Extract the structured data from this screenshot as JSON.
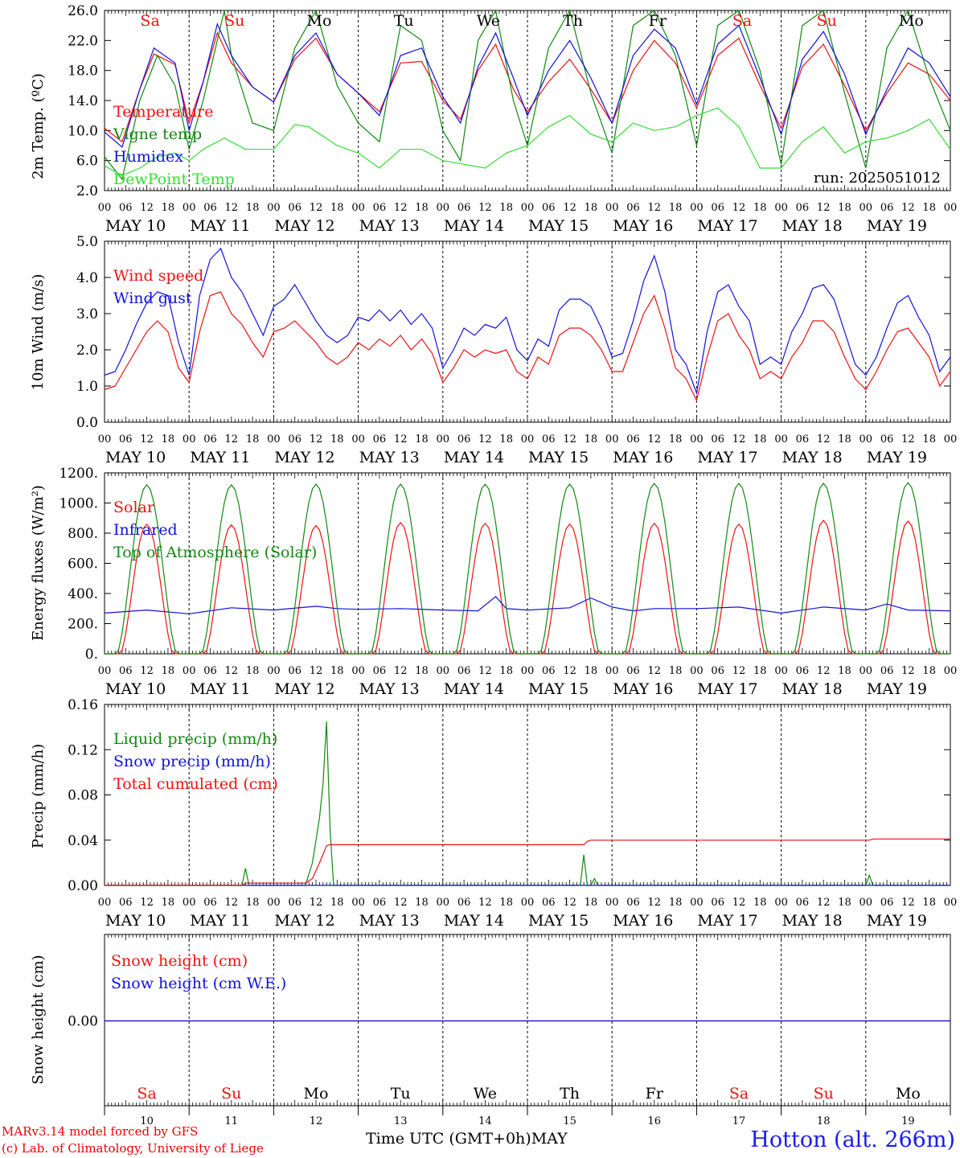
{
  "footer": {
    "model": "MARv3.14 model forced by GFS",
    "lab": "(c) Lab. of Climatology, University of Liege",
    "station": "Hotton (alt. 266m)",
    "time_axis_label": "Time UTC (GMT+0h)",
    "month": "MAY"
  },
  "days": {
    "dates": [
      "MAY 10",
      "MAY 11",
      "MAY 12",
      "MAY 13",
      "MAY 14",
      "MAY 15",
      "MAY 16",
      "MAY 17",
      "MAY 18",
      "MAY 19"
    ],
    "weekdays": [
      "Sa",
      "Su",
      "Mo",
      "Tu",
      "We",
      "Th",
      "Fr",
      "Sa",
      "Su",
      "Mo"
    ],
    "weekend": [
      true,
      true,
      false,
      false,
      false,
      false,
      false,
      true,
      true,
      false
    ],
    "numbers": [
      "10",
      "11",
      "12",
      "13",
      "14",
      "15",
      "16",
      "17",
      "18",
      "19"
    ],
    "hour_ticks": [
      "00",
      "06",
      "12",
      "18"
    ],
    "end_tick": "00"
  },
  "colors": {
    "red": "#ee1111",
    "darkgreen": "#118811",
    "blue": "#1111dd",
    "lightgreen": "#33dd33",
    "weekend": "#ee1111"
  },
  "chart_data": [
    {
      "type": "line",
      "ylabel": "2m Temp. (ºC)",
      "ylim": [
        2.0,
        26.0
      ],
      "yticks": [
        "2.0",
        "6.0",
        "10.0",
        "14.0",
        "18.0",
        "22.0",
        "26.0"
      ],
      "annotation": "run: 2025051012",
      "x_unit": "hours since MAY 10 00 UTC",
      "series": [
        {
          "name": "Temperature",
          "color": "red",
          "x": [
            0,
            5,
            10,
            14,
            20,
            24,
            28,
            32,
            36,
            42,
            48,
            54,
            60,
            66,
            72,
            78,
            84,
            90,
            96,
            101,
            106,
            111,
            116,
            120,
            126,
            132,
            138,
            144,
            150,
            156,
            162,
            168,
            174,
            180,
            186,
            192,
            198,
            204,
            210,
            216,
            222,
            228,
            234,
            240
          ],
          "y": [
            10.3,
            8.5,
            15.5,
            20.2,
            18.8,
            11.0,
            16.5,
            23.0,
            19.0,
            15.8,
            13.8,
            19.5,
            22.3,
            17.5,
            15.0,
            12.5,
            19.0,
            19.2,
            14.0,
            11.5,
            18.0,
            21.5,
            15.5,
            12.5,
            16.5,
            19.5,
            15.5,
            11.0,
            18.0,
            22.0,
            19.0,
            13.0,
            20.0,
            22.3,
            16.0,
            10.3,
            18.5,
            21.5,
            16.0,
            10.0,
            15.0,
            19.0,
            17.5,
            14.0
          ]
        },
        {
          "name": "Vigne temp",
          "color": "darkgreen",
          "x": [
            0,
            5,
            10,
            15,
            20,
            24,
            28,
            34,
            36,
            42,
            48,
            54,
            60,
            66,
            72,
            78,
            84,
            90,
            96,
            101,
            106,
            111,
            116,
            120,
            126,
            132,
            138,
            144,
            150,
            156,
            162,
            168,
            174,
            180,
            186,
            192,
            198,
            204,
            210,
            216,
            222,
            228,
            234,
            240
          ],
          "y": [
            6.5,
            3.5,
            14.0,
            20.0,
            16.0,
            7.5,
            14.0,
            26.0,
            20.0,
            11.0,
            10.0,
            21.0,
            26.0,
            16.0,
            11.0,
            8.5,
            24.0,
            22.0,
            10.0,
            6.0,
            22.0,
            26.0,
            14.0,
            8.0,
            21.0,
            26.0,
            15.0,
            7.0,
            24.0,
            26.0,
            20.0,
            8.0,
            24.0,
            26.0,
            18.0,
            5.5,
            24.0,
            26.0,
            15.0,
            5.0,
            21.0,
            26.0,
            17.0,
            10.0
          ]
        },
        {
          "name": "Humidex",
          "color": "blue",
          "x": [
            0,
            5,
            10,
            14,
            20,
            24,
            28,
            32,
            36,
            42,
            48,
            54,
            60,
            66,
            72,
            78,
            84,
            90,
            96,
            101,
            106,
            111,
            116,
            120,
            126,
            132,
            138,
            144,
            150,
            156,
            162,
            168,
            174,
            180,
            186,
            192,
            198,
            204,
            210,
            216,
            222,
            228,
            234,
            240
          ],
          "y": [
            9.8,
            7.8,
            15.5,
            21.0,
            19.0,
            10.0,
            16.5,
            24.2,
            20.0,
            15.8,
            13.8,
            20.0,
            23.0,
            17.5,
            15.0,
            12.0,
            20.0,
            21.0,
            14.5,
            11.0,
            18.5,
            23.0,
            17.0,
            12.0,
            18.0,
            22.0,
            17.0,
            11.0,
            20.0,
            23.5,
            21.0,
            13.5,
            21.5,
            24.0,
            17.0,
            9.5,
            19.5,
            23.2,
            17.5,
            9.5,
            15.5,
            21.0,
            19.0,
            14.5
          ]
        },
        {
          "name": "DewPoint Temp",
          "color": "lightgreen",
          "x": [
            0,
            5,
            10,
            15,
            20,
            24,
            28,
            34,
            40,
            48,
            54,
            58,
            66,
            72,
            78,
            84,
            90,
            96,
            102,
            108,
            114,
            120,
            126,
            132,
            138,
            144,
            150,
            156,
            162,
            168,
            174,
            180,
            186,
            192,
            198,
            204,
            210,
            216,
            222,
            228,
            234,
            240
          ],
          "y": [
            5.3,
            4.0,
            5.0,
            6.5,
            7.0,
            6.0,
            7.5,
            9.0,
            7.5,
            7.5,
            10.8,
            10.5,
            8.0,
            7.0,
            5.0,
            7.5,
            7.5,
            6.0,
            5.5,
            5.0,
            7.0,
            8.0,
            10.5,
            12.0,
            9.5,
            8.5,
            11.0,
            10.0,
            10.5,
            12.0,
            13.0,
            10.5,
            5.0,
            5.0,
            8.5,
            10.5,
            7.0,
            8.5,
            9.0,
            10.0,
            11.5,
            7.5
          ]
        }
      ]
    },
    {
      "type": "line",
      "ylabel": "10m Wind (m/s)",
      "ylim": [
        0.0,
        5.0
      ],
      "yticks": [
        "0.0",
        "1.0",
        "2.0",
        "3.0",
        "4.0",
        "5.0"
      ],
      "x_unit": "hours since MAY 10 00 UTC",
      "series": [
        {
          "name": "Wind speed",
          "color": "red",
          "x": [
            0,
            3,
            6,
            9,
            12,
            15,
            18,
            21,
            24,
            27,
            30,
            33,
            36,
            39,
            42,
            45,
            48,
            51,
            54,
            57,
            60,
            63,
            66,
            69,
            72,
            75,
            78,
            81,
            84,
            87,
            90,
            93,
            96,
            99,
            102,
            105,
            108,
            111,
            114,
            117,
            120,
            123,
            126,
            129,
            132,
            135,
            138,
            141,
            144,
            147,
            150,
            153,
            156,
            159,
            162,
            165,
            168,
            171,
            174,
            177,
            180,
            183,
            186,
            189,
            192,
            195,
            198,
            201,
            204,
            207,
            210,
            213,
            216,
            219,
            222,
            225,
            228,
            231,
            234,
            237,
            240
          ],
          "y": [
            0.9,
            1.0,
            1.5,
            2.0,
            2.5,
            2.8,
            2.5,
            1.5,
            1.1,
            2.5,
            3.5,
            3.6,
            3.0,
            2.7,
            2.2,
            1.8,
            2.5,
            2.6,
            2.8,
            2.5,
            2.2,
            1.8,
            1.6,
            1.8,
            2.2,
            2.0,
            2.3,
            2.1,
            2.4,
            2.0,
            2.3,
            1.9,
            1.1,
            1.5,
            2.0,
            1.8,
            2.0,
            1.9,
            2.0,
            1.4,
            1.2,
            1.8,
            1.6,
            2.4,
            2.6,
            2.6,
            2.4,
            2.0,
            1.4,
            1.4,
            2.2,
            3.0,
            3.5,
            2.6,
            1.5,
            1.2,
            0.6,
            1.8,
            2.8,
            3.0,
            2.4,
            2.0,
            1.2,
            1.4,
            1.2,
            1.8,
            2.2,
            2.8,
            2.8,
            2.5,
            1.8,
            1.2,
            0.9,
            1.4,
            2.0,
            2.5,
            2.6,
            2.2,
            1.8,
            1.0,
            1.4
          ]
        },
        {
          "name": "Wind gust",
          "color": "blue",
          "x": [
            0,
            3,
            6,
            9,
            12,
            15,
            18,
            21,
            24,
            27,
            30,
            33,
            36,
            39,
            42,
            45,
            48,
            51,
            54,
            57,
            60,
            63,
            66,
            69,
            72,
            75,
            78,
            81,
            84,
            87,
            90,
            93,
            96,
            99,
            102,
            105,
            108,
            111,
            114,
            117,
            120,
            123,
            126,
            129,
            132,
            135,
            138,
            141,
            144,
            147,
            150,
            153,
            156,
            159,
            162,
            165,
            168,
            171,
            174,
            177,
            180,
            183,
            186,
            189,
            192,
            195,
            198,
            201,
            204,
            207,
            210,
            213,
            216,
            219,
            222,
            225,
            228,
            231,
            234,
            237,
            240
          ],
          "y": [
            1.3,
            1.4,
            2.0,
            2.7,
            3.3,
            3.6,
            3.5,
            2.2,
            1.3,
            3.5,
            4.5,
            4.8,
            4.0,
            3.6,
            3.0,
            2.4,
            3.2,
            3.4,
            3.8,
            3.3,
            2.8,
            2.4,
            2.2,
            2.4,
            2.9,
            2.8,
            3.1,
            2.8,
            3.1,
            2.7,
            3.0,
            2.6,
            1.5,
            2.0,
            2.6,
            2.4,
            2.7,
            2.6,
            2.9,
            2.0,
            1.7,
            2.3,
            2.1,
            3.1,
            3.4,
            3.4,
            3.2,
            2.6,
            1.8,
            1.9,
            2.8,
            3.9,
            4.6,
            3.6,
            2.0,
            1.6,
            0.8,
            2.5,
            3.6,
            3.8,
            3.2,
            2.8,
            1.6,
            1.8,
            1.6,
            2.5,
            3.0,
            3.7,
            3.8,
            3.4,
            2.5,
            1.6,
            1.3,
            1.8,
            2.6,
            3.3,
            3.5,
            2.9,
            2.4,
            1.4,
            1.8
          ]
        }
      ]
    },
    {
      "type": "line",
      "ylabel": "Energy fluxes (W/m²)",
      "ylim": [
        0,
        1200
      ],
      "yticks": [
        "0.",
        "200.",
        "400.",
        "600.",
        "800.",
        "1000.",
        "1200."
      ],
      "x_unit": "hours since MAY 10 00 UTC",
      "series": [
        {
          "name": "Solar",
          "color": "red",
          "daily_peaks": [
            860,
            855,
            850,
            870,
            865,
            860,
            865,
            860,
            885,
            880
          ]
        },
        {
          "name": "Infrared",
          "color": "blue",
          "x": [
            0,
            12,
            24,
            36,
            48,
            60,
            66,
            72,
            84,
            96,
            106,
            111,
            114,
            120,
            132,
            138,
            144,
            150,
            156,
            168,
            180,
            192,
            204,
            216,
            222,
            228,
            240
          ],
          "y": [
            270,
            290,
            265,
            305,
            290,
            315,
            300,
            295,
            300,
            290,
            285,
            380,
            300,
            290,
            305,
            370,
            310,
            285,
            300,
            300,
            310,
            270,
            310,
            290,
            330,
            290,
            285
          ]
        },
        {
          "name": "Top of Atmosphere (Solar)",
          "color": "darkgreen",
          "daily_peaks": [
            1120,
            1120,
            1125,
            1125,
            1125,
            1125,
            1130,
            1130,
            1130,
            1135
          ]
        }
      ]
    },
    {
      "type": "line",
      "ylabel": "Precip (mm/h)",
      "ylim": [
        0.0,
        0.16
      ],
      "yticks": [
        "0.00",
        "0.04",
        "0.08",
        "0.12",
        "0.16"
      ],
      "x_unit": "hours since MAY 10 00 UTC",
      "series": [
        {
          "name": "Liquid precip (mm/h)",
          "color": "darkgreen",
          "x": [
            0,
            39,
            40,
            41,
            57,
            58,
            59,
            60,
            61,
            62,
            63,
            64,
            65,
            66,
            67,
            68,
            135,
            136,
            137,
            138,
            139,
            140,
            141,
            216,
            217,
            218,
            219,
            240
          ],
          "y": [
            0,
            0,
            0.015,
            0,
            0,
            0.01,
            0.02,
            0.04,
            0.06,
            0.09,
            0.145,
            0.05,
            0,
            0,
            0,
            0,
            0,
            0.027,
            0,
            0,
            0.006,
            0,
            0,
            0,
            0.009,
            0,
            0,
            0
          ]
        },
        {
          "name": "Snow precip (mm/h)",
          "color": "blue",
          "x": [
            0,
            240
          ],
          "y": [
            0,
            0
          ]
        },
        {
          "name": "Total cumulated (cm)",
          "color": "red",
          "x": [
            0,
            39,
            40,
            57,
            59,
            61,
            63,
            64,
            136,
            137,
            138,
            217,
            218,
            240
          ],
          "y": [
            0,
            0,
            0.002,
            0.002,
            0.006,
            0.02,
            0.035,
            0.036,
            0.036,
            0.039,
            0.04,
            0.04,
            0.041,
            0.041
          ]
        }
      ]
    },
    {
      "type": "line",
      "ylabel": "Snow height (cm)",
      "yticks": [
        "0.00"
      ],
      "x_unit": "hours since MAY 10 00 UTC",
      "series": [
        {
          "name": "Snow height (cm)",
          "color": "red",
          "x": [
            0,
            240
          ],
          "y": [
            0,
            0
          ]
        },
        {
          "name": "Snow height (cm W.E.)",
          "color": "blue",
          "x": [
            0,
            240
          ],
          "y": [
            0,
            0
          ]
        }
      ]
    }
  ]
}
